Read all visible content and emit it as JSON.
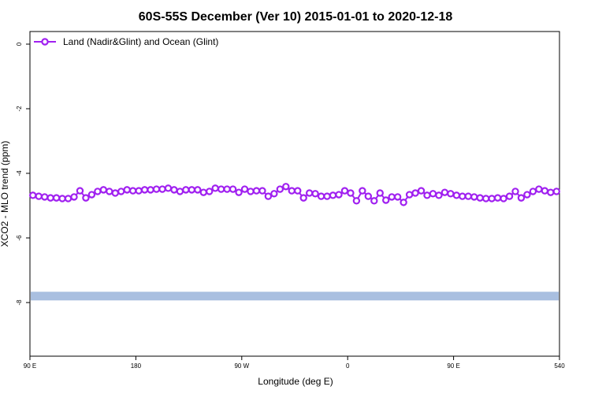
{
  "chart_data": {
    "type": "line",
    "title": "60S-55S December (Ver 10)   2015-01-01 to 2020-12-18",
    "x_label": "Longitude (deg E)",
    "y_label": "XCO2 - MLO trend (ppm)",
    "x": [
      92.5,
      97.5,
      102.5,
      107.5,
      112.5,
      117.5,
      122.5,
      127.5,
      132.5,
      137.5,
      142.5,
      147.5,
      152.5,
      157.5,
      162.5,
      167.5,
      172.5,
      177.5,
      182.5,
      187.5,
      192.5,
      197.5,
      202.5,
      207.5,
      212.5,
      217.5,
      222.5,
      227.5,
      232.5,
      237.5,
      242.5,
      247.5,
      252.5,
      257.5,
      262.5,
      267.5,
      272.5,
      277.5,
      282.5,
      287.5,
      292.5,
      297.5,
      302.5,
      307.5,
      312.5,
      317.5,
      322.5,
      327.5,
      332.5,
      337.5,
      342.5,
      347.5,
      352.5,
      357.5,
      362.5,
      367.5,
      372.5,
      377.5,
      382.5,
      387.5,
      392.5,
      397.5,
      402.5,
      407.5,
      412.5,
      417.5,
      422.5,
      427.5,
      432.5,
      437.5,
      442.5,
      447.5,
      452.5,
      457.5,
      462.5,
      467.5,
      472.5,
      477.5,
      482.5,
      487.5,
      492.5,
      497.5,
      502.5,
      507.5,
      512.5,
      517.5,
      522.5,
      527.5,
      532.5,
      537.5
    ],
    "series": [
      {
        "name": "Land (Nadir&Glint) and Ocean (Glint)",
        "color": "#a020f0",
        "values": [
          -4.68,
          -4.71,
          -4.73,
          -4.76,
          -4.76,
          -4.78,
          -4.78,
          -4.73,
          -4.54,
          -4.76,
          -4.66,
          -4.56,
          -4.51,
          -4.56,
          -4.61,
          -4.56,
          -4.51,
          -4.54,
          -4.54,
          -4.51,
          -4.51,
          -4.49,
          -4.49,
          -4.46,
          -4.51,
          -4.56,
          -4.51,
          -4.51,
          -4.51,
          -4.59,
          -4.56,
          -4.46,
          -4.49,
          -4.49,
          -4.49,
          -4.59,
          -4.49,
          -4.56,
          -4.54,
          -4.54,
          -4.71,
          -4.63,
          -4.49,
          -4.41,
          -4.54,
          -4.54,
          -4.76,
          -4.61,
          -4.63,
          -4.71,
          -4.71,
          -4.68,
          -4.66,
          -4.54,
          -4.61,
          -4.85,
          -4.54,
          -4.71,
          -4.85,
          -4.61,
          -4.83,
          -4.73,
          -4.73,
          -4.9,
          -4.66,
          -4.61,
          -4.54,
          -4.68,
          -4.63,
          -4.68,
          -4.59,
          -4.63,
          -4.68,
          -4.71,
          -4.71,
          -4.73,
          -4.76,
          -4.78,
          -4.78,
          -4.76,
          -4.78,
          -4.71,
          -4.56,
          -4.76,
          -4.66,
          -4.56,
          -4.49,
          -4.54,
          -4.59,
          -4.56
        ]
      }
    ],
    "hline": -7.8,
    "hline_color": "#a9bfe0",
    "xlim": [
      90,
      540
    ],
    "xticks": [
      {
        "value": 90,
        "label": "90 E"
      },
      180,
      {
        "value": 270,
        "label": "90 W"
      },
      {
        "value": 360,
        "label": "0"
      },
      {
        "value": 450,
        "label": "90 E"
      },
      540
    ],
    "ylim": [
      -9.66,
      0.39
    ],
    "yticks": [
      0,
      -2,
      -4,
      -6,
      -8
    ],
    "legend": "top-left"
  }
}
